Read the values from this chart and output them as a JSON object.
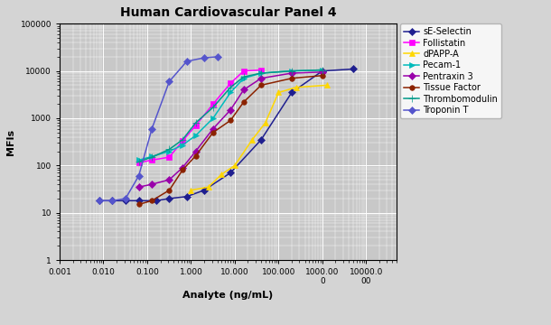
{
  "title": "Human Cardiovascular Panel 4",
  "xlabel": "Analyte (ng/mL)",
  "ylabel": "MFIs",
  "fig_facecolor": "#d4d4d4",
  "ax_facecolor": "#c8c8c8",
  "series": [
    {
      "name": "sE-Selectin",
      "color": "#1F1F8F",
      "marker": "D",
      "markersize": 4,
      "x": [
        0.008,
        0.016,
        0.032,
        0.064,
        0.16,
        0.32,
        0.8,
        2.0,
        8.0,
        40.0,
        200.0,
        1000.0,
        5000.0
      ],
      "y": [
        18,
        18,
        18,
        18,
        18,
        20,
        22,
        30,
        70,
        350,
        3500,
        10000,
        11000
      ]
    },
    {
      "name": "Follistatin",
      "color": "#FF00FF",
      "marker": "s",
      "markersize": 4,
      "x": [
        0.064,
        0.128,
        0.32,
        0.64,
        1.28,
        3.2,
        8.0,
        16.0,
        40.0
      ],
      "y": [
        115,
        130,
        150,
        330,
        700,
        2000,
        5500,
        10000,
        10500
      ]
    },
    {
      "name": "dPAPP-A",
      "color": "#FFD700",
      "marker": "^",
      "markersize": 5,
      "x": [
        1.0,
        2.5,
        5.0,
        10.0,
        25.0,
        50.0,
        100.0,
        250.0,
        1250.0
      ],
      "y": [
        30,
        35,
        65,
        100,
        350,
        800,
        3500,
        4500,
        5000
      ]
    },
    {
      "name": "Pecam-1",
      "color": "#00BBBB",
      "marker": ">",
      "markersize": 4,
      "x": [
        0.064,
        0.128,
        0.32,
        0.64,
        1.28,
        3.2,
        8.0,
        16.0,
        40.0,
        200.0,
        1000.0
      ],
      "y": [
        130,
        155,
        200,
        270,
        430,
        1000,
        3500,
        7000,
        9000,
        10000,
        10500
      ]
    },
    {
      "name": "Pentraxin 3",
      "color": "#9900AA",
      "marker": "D",
      "markersize": 4,
      "x": [
        0.064,
        0.128,
        0.32,
        0.64,
        1.28,
        3.2,
        8.0,
        16.0,
        40.0,
        200.0,
        1000.0
      ],
      "y": [
        35,
        40,
        50,
        90,
        200,
        600,
        1500,
        4000,
        7000,
        9000,
        9500
      ]
    },
    {
      "name": "Tissue Factor",
      "color": "#8B2200",
      "marker": "o",
      "markersize": 4,
      "x": [
        0.064,
        0.128,
        0.32,
        0.64,
        1.28,
        3.2,
        8.0,
        16.0,
        40.0,
        200.0,
        1000.0
      ],
      "y": [
        15,
        18,
        30,
        80,
        160,
        500,
        900,
        2200,
        5000,
        7000,
        8000
      ]
    },
    {
      "name": "Thrombomodulin",
      "color": "#009988",
      "marker": "+",
      "markersize": 6,
      "x": [
        0.064,
        0.128,
        0.32,
        0.64,
        1.28,
        3.2,
        8.0,
        16.0,
        40.0,
        200.0,
        1000.0
      ],
      "y": [
        120,
        150,
        220,
        350,
        800,
        1700,
        4500,
        7500,
        9000,
        10000,
        10500
      ]
    },
    {
      "name": "Troponin T",
      "color": "#5555CC",
      "marker": "D",
      "markersize": 4,
      "x": [
        0.008,
        0.016,
        0.032,
        0.064,
        0.128,
        0.32,
        0.8,
        2.0,
        4.0
      ],
      "y": [
        18,
        18,
        20,
        60,
        600,
        6000,
        16000,
        19000,
        20000
      ]
    }
  ]
}
